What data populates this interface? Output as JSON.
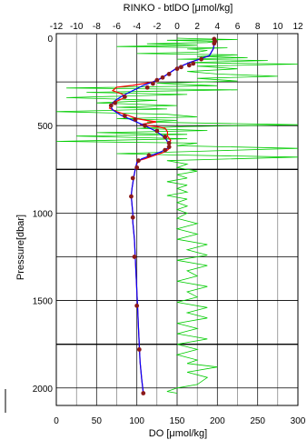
{
  "chart_data": {
    "type": "line",
    "title": "RINKO - btlDO [μmol/kg]",
    "xlabel": "DO [μmol/kg]",
    "ylabel": "Pressure[dbar]",
    "x_bottom": {
      "range": [
        0,
        300
      ],
      "ticks": [
        0,
        50,
        100,
        150,
        200,
        250,
        300
      ]
    },
    "x_top": {
      "range": [
        -12,
        12
      ],
      "ticks": [
        -12,
        -10,
        -8,
        -6,
        -4,
        -2,
        0,
        2,
        4,
        6,
        8,
        10,
        12
      ]
    },
    "y": {
      "range": [
        0,
        2100
      ],
      "reversed": true,
      "ticks": [
        0,
        500,
        1000,
        1500,
        2000
      ]
    },
    "grid": true,
    "grid_major_rows": [
      250,
      500,
      750,
      1000,
      1250,
      1500,
      1750,
      2000
    ],
    "colors": {
      "rinko_profile": "#ff0000",
      "fitted_profile": "#0000ff",
      "bottle_do": "#8b1a1a",
      "difference": "#00cc00"
    },
    "series": [
      {
        "key": "rinko_profile",
        "axis": "bottom",
        "points": [
          [
            195,
            5
          ],
          [
            196,
            30
          ],
          [
            195,
            60
          ],
          [
            190,
            100
          ],
          [
            178,
            120
          ],
          [
            165,
            140
          ],
          [
            150,
            170
          ],
          [
            140,
            200
          ],
          [
            130,
            230
          ],
          [
            120,
            250
          ],
          [
            108,
            260
          ],
          [
            95,
            270
          ],
          [
            75,
            280
          ],
          [
            70,
            300
          ],
          [
            82,
            320
          ],
          [
            85,
            340
          ],
          [
            75,
            360
          ],
          [
            68,
            380
          ],
          [
            66,
            400
          ],
          [
            75,
            420
          ],
          [
            88,
            440
          ],
          [
            100,
            460
          ],
          [
            112,
            470
          ],
          [
            124,
            478
          ],
          [
            115,
            486
          ],
          [
            104,
            494
          ],
          [
            112,
            500
          ],
          [
            125,
            506
          ],
          [
            135,
            515
          ],
          [
            138,
            535
          ],
          [
            138,
            560
          ],
          [
            142,
            585
          ],
          [
            140,
            605
          ],
          [
            142,
            622
          ],
          [
            138,
            640
          ],
          [
            132,
            655
          ],
          [
            122,
            670
          ],
          [
            110,
            690
          ],
          [
            102,
            700
          ],
          [
            100,
            720
          ],
          [
            98,
            750
          ],
          [
            96,
            800
          ],
          [
            94,
            860
          ],
          [
            93,
            900
          ],
          [
            94,
            950
          ],
          [
            95,
            1000
          ],
          [
            95,
            1050
          ],
          [
            97,
            1150
          ],
          [
            98,
            1250
          ],
          [
            99,
            1350
          ],
          [
            100,
            1450
          ],
          [
            101,
            1550
          ],
          [
            102,
            1650
          ],
          [
            103,
            1750
          ],
          [
            104,
            1850
          ],
          [
            106,
            1950
          ],
          [
            108,
            2030
          ]
        ]
      },
      {
        "key": "fitted_profile",
        "axis": "bottom",
        "points": [
          [
            195,
            5
          ],
          [
            196,
            30
          ],
          [
            195,
            60
          ],
          [
            190,
            100
          ],
          [
            178,
            120
          ],
          [
            165,
            140
          ],
          [
            150,
            170
          ],
          [
            140,
            200
          ],
          [
            130,
            230
          ],
          [
            120,
            250
          ],
          [
            108,
            270
          ],
          [
            95,
            300
          ],
          [
            82,
            330
          ],
          [
            72,
            360
          ],
          [
            67,
            385
          ],
          [
            70,
            410
          ],
          [
            80,
            440
          ],
          [
            95,
            470
          ],
          [
            110,
            500
          ],
          [
            125,
            535
          ],
          [
            135,
            570
          ],
          [
            140,
            605
          ],
          [
            138,
            630
          ],
          [
            130,
            650
          ],
          [
            118,
            670
          ],
          [
            106,
            690
          ],
          [
            100,
            710
          ],
          [
            98,
            750
          ],
          [
            96,
            800
          ],
          [
            94,
            860
          ],
          [
            93,
            900
          ],
          [
            94,
            950
          ],
          [
            95,
            1000
          ],
          [
            95,
            1050
          ],
          [
            97,
            1150
          ],
          [
            98,
            1250
          ],
          [
            99,
            1350
          ],
          [
            100,
            1450
          ],
          [
            101,
            1550
          ],
          [
            102,
            1650
          ],
          [
            103,
            1750
          ],
          [
            104,
            1850
          ],
          [
            106,
            1950
          ],
          [
            108,
            2030
          ]
        ]
      },
      {
        "key": "bottle_do",
        "axis": "bottom",
        "points": [
          [
            196,
            5
          ],
          [
            197,
            18
          ],
          [
            196,
            30
          ],
          [
            180,
            120
          ],
          [
            170,
            145
          ],
          [
            165,
            155
          ],
          [
            155,
            165
          ],
          [
            150,
            175
          ],
          [
            140,
            205
          ],
          [
            132,
            225
          ],
          [
            125,
            240
          ],
          [
            120,
            260
          ],
          [
            113,
            282
          ],
          [
            85,
            335
          ],
          [
            73,
            370
          ],
          [
            68,
            385
          ],
          [
            85,
            445
          ],
          [
            98,
            465
          ],
          [
            110,
            500
          ],
          [
            125,
            530
          ],
          [
            135,
            565
          ],
          [
            140,
            600
          ],
          [
            140,
            622
          ],
          [
            135,
            640
          ],
          [
            115,
            670
          ],
          [
            102,
            700
          ],
          [
            100,
            740
          ],
          [
            95,
            800
          ],
          [
            93,
            905
          ],
          [
            95,
            1025
          ],
          [
            97,
            1250
          ],
          [
            100,
            1530
          ],
          [
            103,
            1780
          ],
          [
            108,
            2030
          ]
        ]
      },
      {
        "key": "difference",
        "axis": "top",
        "points": [
          [
            0,
            0
          ],
          [
            2,
            3
          ],
          [
            6,
            8
          ],
          [
            -1,
            12
          ],
          [
            4,
            18
          ],
          [
            3,
            25
          ],
          [
            -3,
            32
          ],
          [
            2,
            40
          ],
          [
            -6,
            48
          ],
          [
            5,
            55
          ],
          [
            1,
            62
          ],
          [
            3,
            70
          ],
          [
            2,
            80
          ],
          [
            -4,
            88
          ],
          [
            6,
            95
          ],
          [
            2,
            105
          ],
          [
            7,
            112
          ],
          [
            0,
            120
          ],
          [
            9,
            128
          ],
          [
            1,
            140
          ],
          [
            12,
            148
          ],
          [
            2,
            160
          ],
          [
            6,
            175
          ],
          [
            1,
            190
          ],
          [
            4,
            205
          ],
          [
            10,
            218
          ],
          [
            2,
            230
          ],
          [
            6,
            245
          ],
          [
            -2,
            258
          ],
          [
            4,
            272
          ],
          [
            -11,
            285
          ],
          [
            6,
            295
          ],
          [
            -9,
            310
          ],
          [
            1,
            322
          ],
          [
            -11,
            340
          ],
          [
            -2,
            355
          ],
          [
            -8,
            370
          ],
          [
            0,
            385
          ],
          [
            -6,
            395
          ],
          [
            -1,
            405
          ],
          [
            -12,
            420
          ],
          [
            -1,
            435
          ],
          [
            2,
            450
          ],
          [
            -6,
            460
          ],
          [
            0,
            470
          ],
          [
            -3,
            480
          ],
          [
            12,
            495
          ],
          [
            1,
            505
          ],
          [
            -4,
            515
          ],
          [
            3,
            528
          ],
          [
            -8,
            540
          ],
          [
            1,
            550
          ],
          [
            -10,
            560
          ],
          [
            1,
            575
          ],
          [
            -12,
            590
          ],
          [
            2,
            600
          ],
          [
            0,
            615
          ],
          [
            12,
            630
          ],
          [
            3,
            645
          ],
          [
            -6,
            660
          ],
          [
            0,
            668
          ],
          [
            12,
            680
          ],
          [
            -1,
            700
          ],
          [
            1,
            720
          ],
          [
            0,
            740
          ],
          [
            2,
            760
          ],
          [
            0,
            780
          ],
          [
            1,
            800
          ],
          [
            -1,
            820
          ],
          [
            1,
            840
          ],
          [
            0,
            860
          ],
          [
            1,
            880
          ],
          [
            -1,
            900
          ],
          [
            1,
            920
          ],
          [
            0,
            940
          ],
          [
            1,
            960
          ],
          [
            0,
            980
          ],
          [
            1,
            1000
          ],
          [
            0,
            1030
          ],
          [
            2,
            1060
          ],
          [
            0,
            1090
          ],
          [
            2,
            1120
          ],
          [
            0,
            1150
          ],
          [
            3,
            1180
          ],
          [
            1,
            1210
          ],
          [
            3,
            1240
          ],
          [
            0,
            1270
          ],
          [
            3,
            1300
          ],
          [
            1,
            1330
          ],
          [
            2,
            1360
          ],
          [
            0,
            1390
          ],
          [
            3,
            1420
          ],
          [
            1,
            1450
          ],
          [
            2,
            1480
          ],
          [
            0,
            1510
          ],
          [
            3,
            1540
          ],
          [
            1,
            1570
          ],
          [
            3,
            1600
          ],
          [
            0,
            1630
          ],
          [
            2,
            1660
          ],
          [
            0,
            1690
          ],
          [
            3,
            1720
          ],
          [
            0,
            1750
          ],
          [
            2,
            1780
          ],
          [
            0,
            1810
          ],
          [
            2,
            1840
          ],
          [
            1,
            1860
          ],
          [
            4,
            1880
          ],
          [
            1,
            1910
          ],
          [
            3,
            1940
          ],
          [
            2,
            1980
          ],
          [
            0,
            2000
          ],
          [
            -1,
            2020
          ],
          [
            0,
            2030
          ]
        ]
      }
    ]
  }
}
